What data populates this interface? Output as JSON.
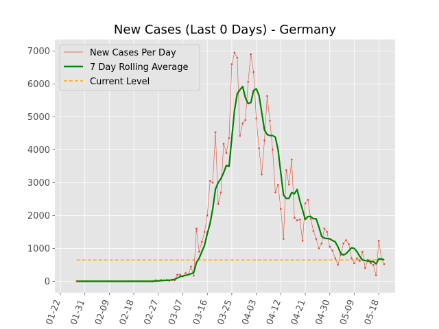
{
  "chart_data": {
    "type": "line",
    "title": "New Cases (Last 0 Days) - Germany",
    "xlabel": "",
    "ylabel": "",
    "x_start": "2020-01-28",
    "x_end": "2020-05-21",
    "xlim": [
      "2020-01-20",
      "2020-05-24"
    ],
    "ylim": [
      -350,
      7350
    ],
    "grid": true,
    "legend_position": "top-left",
    "x_ticks": [
      "01-22",
      "01-31",
      "02-09",
      "02-18",
      "02-27",
      "03-07",
      "03-16",
      "03-25",
      "04-03",
      "04-12",
      "04-21",
      "04-30",
      "05-09",
      "05-18"
    ],
    "y_ticks": [
      0,
      1000,
      2000,
      3000,
      4000,
      5000,
      6000,
      7000
    ],
    "series": [
      {
        "name": "New Cases Per Day",
        "color": "#e24a33",
        "values": [
          0,
          0,
          0,
          0,
          0,
          0,
          0,
          0,
          0,
          0,
          0,
          0,
          0,
          0,
          0,
          0,
          0,
          0,
          0,
          0,
          0,
          0,
          0,
          0,
          0,
          0,
          0,
          0,
          0,
          30,
          10,
          40,
          30,
          40,
          20,
          50,
          30,
          200,
          200,
          150,
          250,
          200,
          450,
          170,
          1600,
          900,
          1200,
          1500,
          2000,
          3050,
          3000,
          4530,
          2350,
          2700,
          4180,
          3900,
          4350,
          6600,
          6950,
          6800,
          4420,
          4800,
          4900,
          6060,
          6900,
          6360,
          4950,
          4040,
          3250,
          4280,
          5630,
          4880,
          4000,
          2700,
          2930,
          2200,
          1290,
          3380,
          2940,
          3700,
          1930,
          1850,
          1880,
          1230,
          2370,
          2480,
          1900,
          1530,
          1290,
          1000,
          1150,
          1600,
          1500,
          1050,
          930,
          700,
          500,
          800,
          1150,
          1250,
          1130,
          700,
          550,
          700,
          620,
          900,
          400,
          650,
          550,
          500,
          180,
          1230,
          680,
          520
        ]
      },
      {
        "name": "7 Day Rolling Average",
        "color": "#008000",
        "values": [
          0,
          0,
          0,
          0,
          0,
          0,
          0,
          0,
          0,
          0,
          0,
          0,
          0,
          0,
          0,
          0,
          0,
          0,
          0,
          0,
          0,
          0,
          0,
          0,
          0,
          0,
          0,
          0,
          0,
          10,
          14,
          20,
          25,
          30,
          36,
          38,
          60,
          100,
          140,
          160,
          180,
          200,
          230,
          260,
          570,
          700,
          900,
          1100,
          1450,
          1750,
          2200,
          2800,
          3000,
          3120,
          3300,
          3520,
          3490,
          4350,
          5200,
          5700,
          5820,
          5920,
          5580,
          5400,
          5430,
          5800,
          5850,
          5650,
          5130,
          4600,
          4460,
          4430,
          4430,
          4380,
          4000,
          3300,
          2620,
          2520,
          2520,
          2700,
          2660,
          2790,
          2450,
          2170,
          1880,
          1970,
          1970,
          1900,
          1900,
          1650,
          1370,
          1310,
          1300,
          1290,
          1240,
          1200,
          1050,
          850,
          800,
          840,
          930,
          1020,
          1000,
          900,
          760,
          650,
          630,
          620,
          600,
          600,
          530,
          680,
          680,
          650
        ]
      },
      {
        "name": "Current Level",
        "color": "#ffa500",
        "values": [
          650
        ]
      }
    ]
  }
}
